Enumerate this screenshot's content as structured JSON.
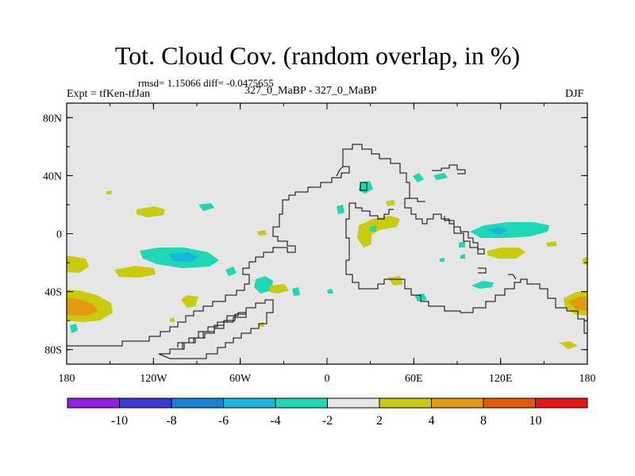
{
  "header": {
    "title": "Tot. Cloud Cov. (random overlap, in %)",
    "stats": "rmsd= 1.15066 diff= -0.0475655",
    "left_label": "Expt = tfKen-tfJan",
    "center_label": "327_0_MaBP - 327_0_MaBP",
    "right_label": "DJF"
  },
  "axes": {
    "x_ticks": [
      "180",
      "120W",
      "60W",
      "0",
      "60E",
      "120E",
      "180"
    ],
    "y_ticks": [
      "80N",
      "40N",
      "0",
      "40S",
      "80S"
    ]
  },
  "colorbar": {
    "labels": [
      "-10",
      "-8",
      "-6",
      "-4",
      "-2",
      "2",
      "4",
      "8",
      "10"
    ],
    "colors": [
      "#8f1ee6",
      "#3a39d6",
      "#1a7fd6",
      "#19b5dc",
      "#1cd8b4",
      "#e6e6e6",
      "#c8cc0c",
      "#e39a10",
      "#e35a0a",
      "#e81414"
    ]
  },
  "colors": {
    "land_bg": "#e6e6e6",
    "outline": "#000000"
  }
}
